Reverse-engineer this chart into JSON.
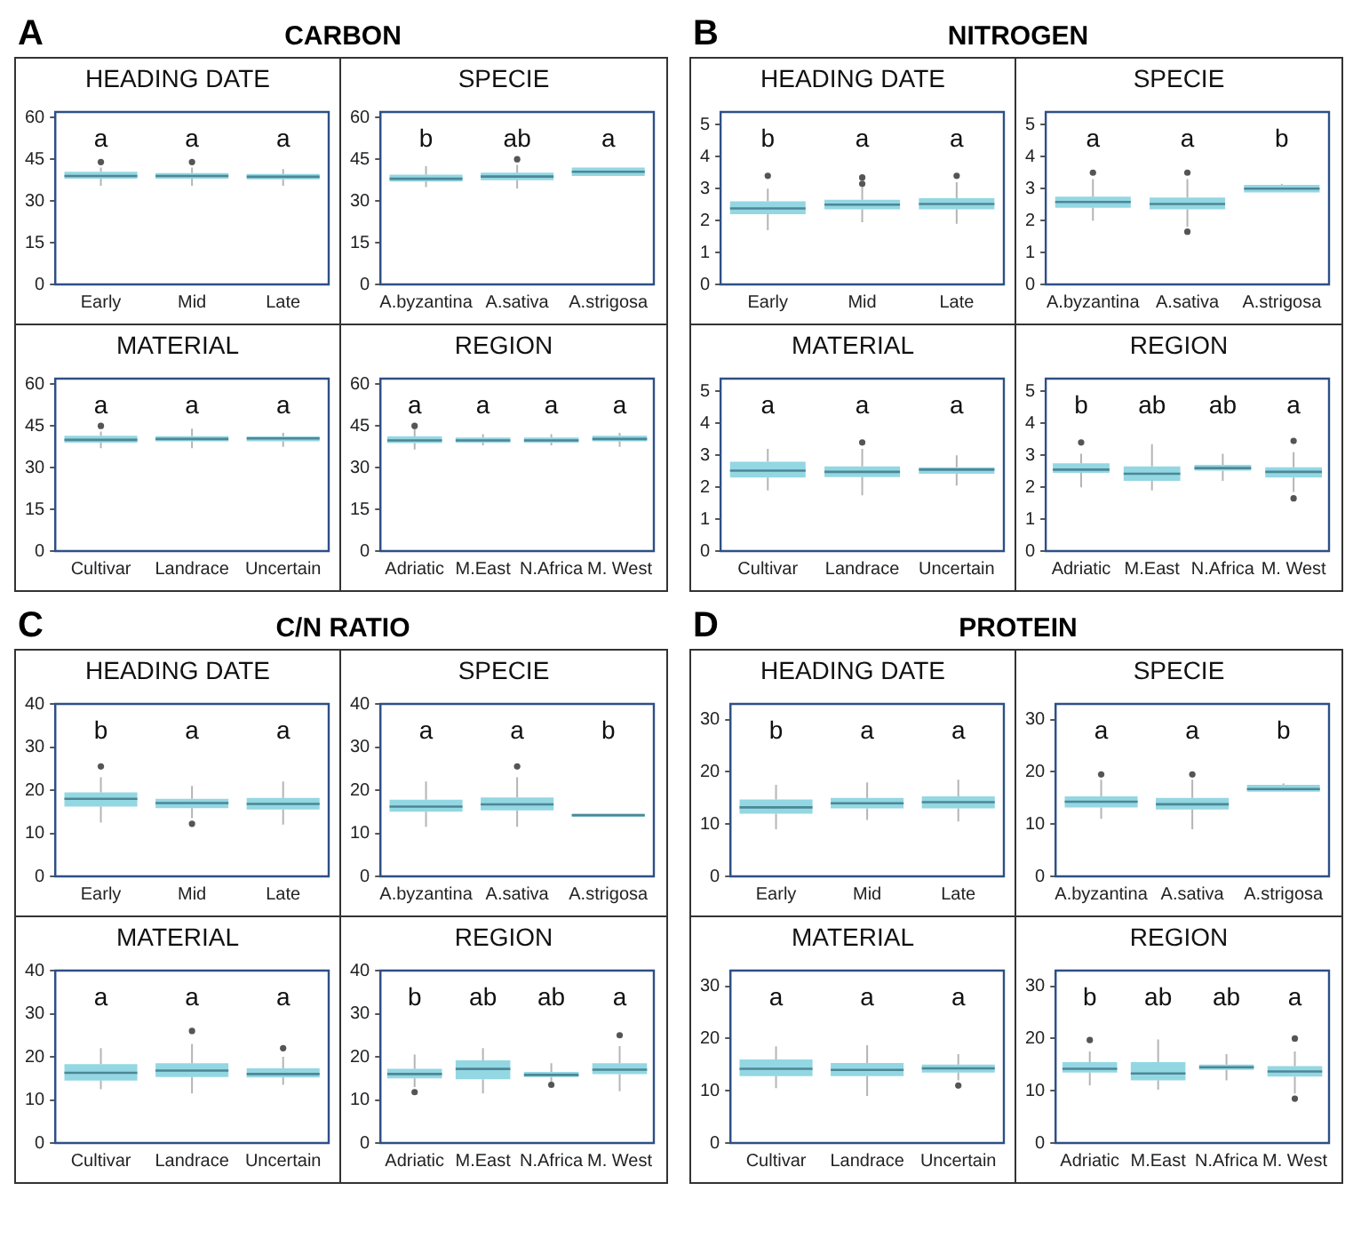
{
  "chart_data": [
    {
      "type": "box",
      "title": "HEADING DATE",
      "categories": [
        "Early",
        "Mid",
        "Late"
      ],
      "color": "#93d7e3",
      "ylim": [
        0,
        62
      ],
      "yticks": [
        0,
        15,
        30,
        45,
        60
      ],
      "grid": false,
      "boxes": [
        {
          "low": 35.5,
          "q1": 38,
          "median": 39,
          "q3": 40.5,
          "high": 42,
          "outliers": [
            44
          ]
        },
        {
          "low": 35.5,
          "q1": 38,
          "median": 39,
          "q3": 40,
          "high": 42,
          "outliers": [
            44
          ]
        },
        {
          "low": 35.5,
          "q1": 37.8,
          "median": 38.7,
          "q3": 39.7,
          "high": 41.5
        }
      ],
      "annotations": [
        "A",
        "CARBON",
        "a",
        "a",
        "a"
      ]
    },
    {
      "type": "box",
      "title": "SPECIE",
      "categories": [
        "A.byzantina",
        "A.sativa",
        "A.strigosa"
      ],
      "color": "#93d7e3",
      "ylim": [
        0,
        62
      ],
      "yticks": [
        0,
        15,
        30,
        45,
        60
      ],
      "grid": false,
      "boxes": [
        {
          "low": 35,
          "q1": 37,
          "median": 38,
          "q3": 39.5,
          "high": 42.5
        },
        {
          "low": 34.5,
          "q1": 37.5,
          "median": 38.8,
          "q3": 40.2,
          "high": 43,
          "outliers": [
            45
          ]
        },
        {
          "low": 39,
          "q1": 39,
          "median": 40.5,
          "q3": 42,
          "high": 42
        }
      ],
      "annotations": [
        "b",
        "ab",
        "a"
      ]
    },
    {
      "type": "box",
      "title": "MATERIAL",
      "categories": [
        "Cultivar",
        "Landrace",
        "Uncertain"
      ],
      "color": "#93d7e3",
      "ylim": [
        0,
        62
      ],
      "yticks": [
        0,
        15,
        30,
        45,
        60
      ],
      "grid": false,
      "boxes": [
        {
          "low": 37,
          "q1": 39,
          "median": 40,
          "q3": 41.5,
          "high": 43,
          "outliers": [
            45
          ]
        },
        {
          "low": 37,
          "q1": 39.5,
          "median": 40.3,
          "q3": 41.3,
          "high": 44
        },
        {
          "low": 37.5,
          "q1": 39.5,
          "median": 40.5,
          "q3": 41.2,
          "high": 42.5
        }
      ],
      "annotations": [
        "a",
        "a",
        "a"
      ]
    },
    {
      "type": "box",
      "title": "REGION",
      "categories": [
        "Adriatic",
        "M.East",
        "N.Africa",
        "M. West"
      ],
      "color": "#93d7e3",
      "ylim": [
        0,
        62
      ],
      "yticks": [
        0,
        15,
        30,
        45,
        60
      ],
      "grid": false,
      "boxes": [
        {
          "low": 36.5,
          "q1": 38.8,
          "median": 39.8,
          "q3": 41.2,
          "high": 44,
          "outliers": [
            45
          ]
        },
        {
          "low": 38,
          "q1": 39,
          "median": 39.8,
          "q3": 40.8,
          "high": 42
        },
        {
          "low": 38,
          "q1": 39,
          "median": 39.8,
          "q3": 40.8,
          "high": 42
        },
        {
          "low": 37.5,
          "q1": 39.5,
          "median": 40.3,
          "q3": 41.5,
          "high": 42.5
        }
      ],
      "annotations": [
        "a",
        "a",
        "a",
        "a"
      ]
    },
    {
      "type": "box",
      "title": "HEADING DATE",
      "categories": [
        "Early",
        "Mid",
        "Late"
      ],
      "color": "#93d7e3",
      "ylim": [
        0,
        5.4
      ],
      "yticks": [
        0,
        1,
        2,
        3,
        4,
        5
      ],
      "grid": false,
      "boxes": [
        {
          "low": 1.7,
          "q1": 2.2,
          "median": 2.38,
          "q3": 2.6,
          "high": 3.0,
          "outliers": [
            3.4
          ]
        },
        {
          "low": 1.95,
          "q1": 2.35,
          "median": 2.5,
          "q3": 2.65,
          "high": 3.05,
          "outliers": [
            3.15,
            3.35
          ]
        },
        {
          "low": 1.9,
          "q1": 2.35,
          "median": 2.52,
          "q3": 2.7,
          "high": 3.2,
          "outliers": [
            3.4
          ]
        }
      ],
      "annotations": [
        "B",
        "NITROGEN",
        "b",
        "a",
        "a"
      ]
    },
    {
      "type": "box",
      "title": "SPECIE",
      "categories": [
        "A.byzantina",
        "A.sativa",
        "A.strigosa"
      ],
      "color": "#93d7e3",
      "ylim": [
        0,
        5.4
      ],
      "yticks": [
        0,
        1,
        2,
        3,
        4,
        5
      ],
      "grid": false,
      "boxes": [
        {
          "low": 2.0,
          "q1": 2.4,
          "median": 2.58,
          "q3": 2.75,
          "high": 3.3,
          "outliers": [
            3.5
          ]
        },
        {
          "low": 1.8,
          "q1": 2.35,
          "median": 2.52,
          "q3": 2.72,
          "high": 3.3,
          "outliers": [
            1.65,
            3.5
          ]
        },
        {
          "low": 2.88,
          "q1": 2.88,
          "median": 3.0,
          "q3": 3.12,
          "high": 3.15
        }
      ],
      "annotations": [
        "a",
        "a",
        "b"
      ]
    },
    {
      "type": "box",
      "title": "MATERIAL",
      "categories": [
        "Cultivar",
        "Landrace",
        "Uncertain"
      ],
      "color": "#93d7e3",
      "ylim": [
        0,
        5.4
      ],
      "yticks": [
        0,
        1,
        2,
        3,
        4,
        5
      ],
      "grid": false,
      "boxes": [
        {
          "low": 1.9,
          "q1": 2.3,
          "median": 2.52,
          "q3": 2.8,
          "high": 3.2
        },
        {
          "low": 1.75,
          "q1": 2.32,
          "median": 2.48,
          "q3": 2.65,
          "high": 3.2,
          "outliers": [
            3.4
          ]
        },
        {
          "low": 2.05,
          "q1": 2.42,
          "median": 2.55,
          "q3": 2.62,
          "high": 3.0
        }
      ],
      "annotations": [
        "a",
        "a",
        "a"
      ]
    },
    {
      "type": "box",
      "title": "REGION",
      "categories": [
        "Adriatic",
        "M.East",
        "N.Africa",
        "M. West"
      ],
      "color": "#93d7e3",
      "ylim": [
        0,
        5.4
      ],
      "yticks": [
        0,
        1,
        2,
        3,
        4,
        5
      ],
      "grid": false,
      "boxes": [
        {
          "low": 2.0,
          "q1": 2.45,
          "median": 2.55,
          "q3": 2.75,
          "high": 3.05,
          "outliers": [
            3.4
          ]
        },
        {
          "low": 1.9,
          "q1": 2.2,
          "median": 2.42,
          "q3": 2.65,
          "high": 3.35
        },
        {
          "low": 2.2,
          "q1": 2.52,
          "median": 2.6,
          "q3": 2.7,
          "high": 3.05
        },
        {
          "low": 1.85,
          "q1": 2.3,
          "median": 2.48,
          "q3": 2.62,
          "high": 3.1,
          "outliers": [
            1.65,
            3.45
          ]
        }
      ],
      "annotations": [
        "b",
        "ab",
        "ab",
        "a"
      ]
    },
    {
      "type": "box",
      "title": "HEADING DATE",
      "categories": [
        "Early",
        "Mid",
        "Late"
      ],
      "color": "#93d7e3",
      "ylim": [
        0,
        40
      ],
      "yticks": [
        0,
        10,
        20,
        30,
        40
      ],
      "grid": false,
      "boxes": [
        {
          "low": 12.5,
          "q1": 16.2,
          "median": 18,
          "q3": 19.5,
          "high": 23,
          "outliers": [
            25.5
          ]
        },
        {
          "low": 13.5,
          "q1": 15.8,
          "median": 17,
          "q3": 18,
          "high": 21,
          "outliers": [
            12.2
          ]
        },
        {
          "low": 12,
          "q1": 15.5,
          "median": 16.8,
          "q3": 18.2,
          "high": 22
        }
      ],
      "annotations": [
        "C",
        "C/N RATIO",
        "b",
        "a",
        "a"
      ]
    },
    {
      "type": "box",
      "title": "SPECIE",
      "categories": [
        "A.byzantina",
        "A.sativa",
        "A.strigosa"
      ],
      "color": "#93d7e3",
      "ylim": [
        0,
        40
      ],
      "yticks": [
        0,
        10,
        20,
        30,
        40
      ],
      "grid": false,
      "boxes": [
        {
          "low": 11.5,
          "q1": 15,
          "median": 16.2,
          "q3": 17.8,
          "high": 22
        },
        {
          "low": 11.5,
          "q1": 15.3,
          "median": 16.7,
          "q3": 18.3,
          "high": 23,
          "outliers": [
            25.5
          ]
        },
        {
          "low": 13.8,
          "q1": 13.8,
          "median": 14.2,
          "q3": 14.5,
          "high": 14.5
        }
      ],
      "annotations": [
        "a",
        "a",
        "b"
      ]
    },
    {
      "type": "box",
      "title": "MATERIAL",
      "categories": [
        "Cultivar",
        "Landrace",
        "Uncertain"
      ],
      "color": "#93d7e3",
      "ylim": [
        0,
        40
      ],
      "yticks": [
        0,
        10,
        20,
        30,
        40
      ],
      "grid": false,
      "boxes": [
        {
          "low": 12.5,
          "q1": 14.5,
          "median": 16.3,
          "q3": 18.3,
          "high": 22
        },
        {
          "low": 11.5,
          "q1": 15.3,
          "median": 16.8,
          "q3": 18.5,
          "high": 23,
          "outliers": [
            26
          ]
        },
        {
          "low": 13.5,
          "q1": 15.2,
          "median": 16,
          "q3": 17.3,
          "high": 20,
          "outliers": [
            22
          ]
        }
      ],
      "annotations": [
        "a",
        "a",
        "a"
      ]
    },
    {
      "type": "box",
      "title": "REGION",
      "categories": [
        "Adriatic",
        "M.East",
        "N.Africa",
        "M. West"
      ],
      "color": "#93d7e3",
      "ylim": [
        0,
        40
      ],
      "yticks": [
        0,
        10,
        20,
        30,
        40
      ],
      "grid": false,
      "boxes": [
        {
          "low": 13,
          "q1": 15,
          "median": 16,
          "q3": 17.2,
          "high": 20.5,
          "outliers": [
            11.8
          ]
        },
        {
          "low": 11.5,
          "q1": 14.8,
          "median": 17.2,
          "q3": 19.2,
          "high": 22
        },
        {
          "low": 14,
          "q1": 15.3,
          "median": 15.8,
          "q3": 16.5,
          "high": 18.5,
          "outliers": [
            13.5
          ]
        },
        {
          "low": 12,
          "q1": 16,
          "median": 17,
          "q3": 18.5,
          "high": 22.5,
          "outliers": [
            25
          ]
        }
      ],
      "annotations": [
        "b",
        "ab",
        "ab",
        "a"
      ]
    },
    {
      "type": "box",
      "title": "HEADING DATE",
      "categories": [
        "Early",
        "Mid",
        "Late"
      ],
      "color": "#93d7e3",
      "ylim": [
        0,
        33
      ],
      "yticks": [
        0,
        10,
        20,
        30
      ],
      "grid": false,
      "boxes": [
        {
          "low": 9,
          "q1": 12,
          "median": 13.2,
          "q3": 14.7,
          "high": 17.5
        },
        {
          "low": 10.8,
          "q1": 13,
          "median": 14,
          "q3": 15,
          "high": 18
        },
        {
          "low": 10.5,
          "q1": 13,
          "median": 14.2,
          "q3": 15.3,
          "high": 18.5
        }
      ],
      "annotations": [
        "D",
        "PROTEIN",
        "b",
        "a",
        "a"
      ]
    },
    {
      "type": "box",
      "title": "SPECIE",
      "categories": [
        "A.byzantina",
        "A.sativa",
        "A.strigosa"
      ],
      "color": "#93d7e3",
      "ylim": [
        0,
        33
      ],
      "yticks": [
        0,
        10,
        20,
        30
      ],
      "grid": false,
      "boxes": [
        {
          "low": 11,
          "q1": 13.2,
          "median": 14.3,
          "q3": 15.3,
          "high": 18.5,
          "outliers": [
            19.5
          ]
        },
        {
          "low": 9,
          "q1": 12.8,
          "median": 13.8,
          "q3": 15,
          "high": 18.5,
          "outliers": [
            19.5
          ]
        },
        {
          "low": 16.2,
          "q1": 16.2,
          "median": 16.7,
          "q3": 17.5,
          "high": 17.8
        }
      ],
      "annotations": [
        "a",
        "a",
        "b"
      ]
    },
    {
      "type": "box",
      "title": "MATERIAL",
      "categories": [
        "Cultivar",
        "Landrace",
        "Uncertain"
      ],
      "color": "#93d7e3",
      "ylim": [
        0,
        33
      ],
      "yticks": [
        0,
        10,
        20,
        30
      ],
      "grid": false,
      "boxes": [
        {
          "low": 10.5,
          "q1": 12.8,
          "median": 14.2,
          "q3": 16,
          "high": 18.5
        },
        {
          "low": 9,
          "q1": 12.8,
          "median": 14,
          "q3": 15.3,
          "high": 18.7
        },
        {
          "low": 12,
          "q1": 13.5,
          "median": 14.3,
          "q3": 15,
          "high": 17,
          "outliers": [
            11
          ]
        }
      ],
      "annotations": [
        "a",
        "a",
        "a"
      ]
    },
    {
      "type": "box",
      "title": "REGION",
      "categories": [
        "Adriatic",
        "M.East",
        "N.Africa",
        "M. West"
      ],
      "color": "#93d7e3",
      "ylim": [
        0,
        33
      ],
      "yticks": [
        0,
        10,
        20,
        30
      ],
      "grid": false,
      "boxes": [
        {
          "low": 11,
          "q1": 13.5,
          "median": 14.2,
          "q3": 15.5,
          "high": 17.5,
          "outliers": [
            19.7
          ]
        },
        {
          "low": 10.2,
          "q1": 12,
          "median": 13.3,
          "q3": 15.5,
          "high": 19.8
        },
        {
          "low": 12,
          "q1": 14,
          "median": 14.5,
          "q3": 15,
          "high": 17
        },
        {
          "low": 9.5,
          "q1": 12.7,
          "median": 13.7,
          "q3": 14.7,
          "high": 17.5,
          "outliers": [
            8.5,
            20
          ]
        }
      ],
      "annotations": [
        "b",
        "ab",
        "ab",
        "a"
      ]
    }
  ]
}
